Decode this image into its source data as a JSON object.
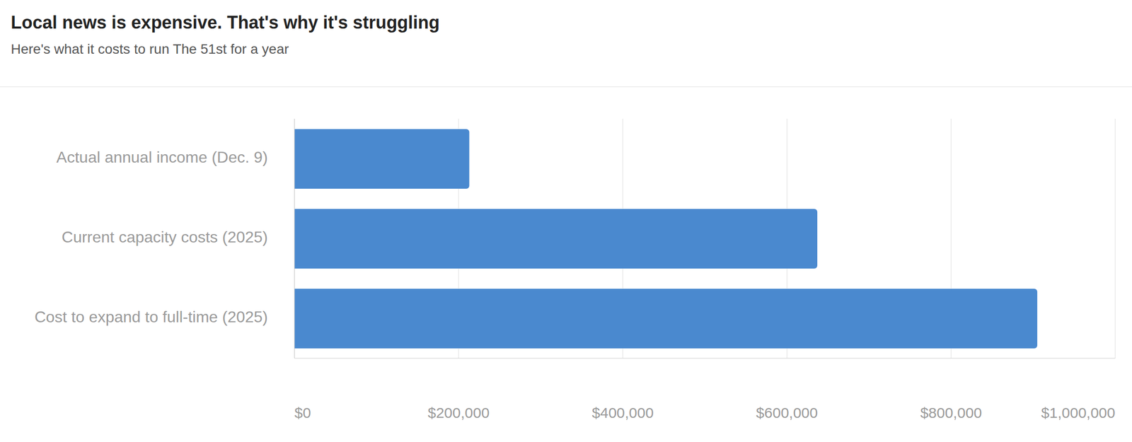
{
  "chart_data": {
    "type": "bar",
    "orientation": "horizontal",
    "title": "Local news is expensive. That's why it's struggling",
    "subtitle": "Here's what it costs to run The 51st for a year",
    "categories": [
      "Actual annual income (Dec. 9)",
      "Current capacity costs (2025)",
      "Cost to expand to full-time (2025)"
    ],
    "values": [
      213000,
      637000,
      905000
    ],
    "color": "#4a89cf",
    "xlim": [
      0,
      1000000
    ],
    "xticks": [
      {
        "value": 0,
        "label": "$0"
      },
      {
        "value": 200000,
        "label": "$200,000"
      },
      {
        "value": 400000,
        "label": "$400,000"
      },
      {
        "value": 600000,
        "label": "$600,000"
      },
      {
        "value": 800000,
        "label": "$800,000"
      },
      {
        "value": 1000000,
        "label": "$1,000,000"
      }
    ],
    "grid": true,
    "data_labels": false
  }
}
